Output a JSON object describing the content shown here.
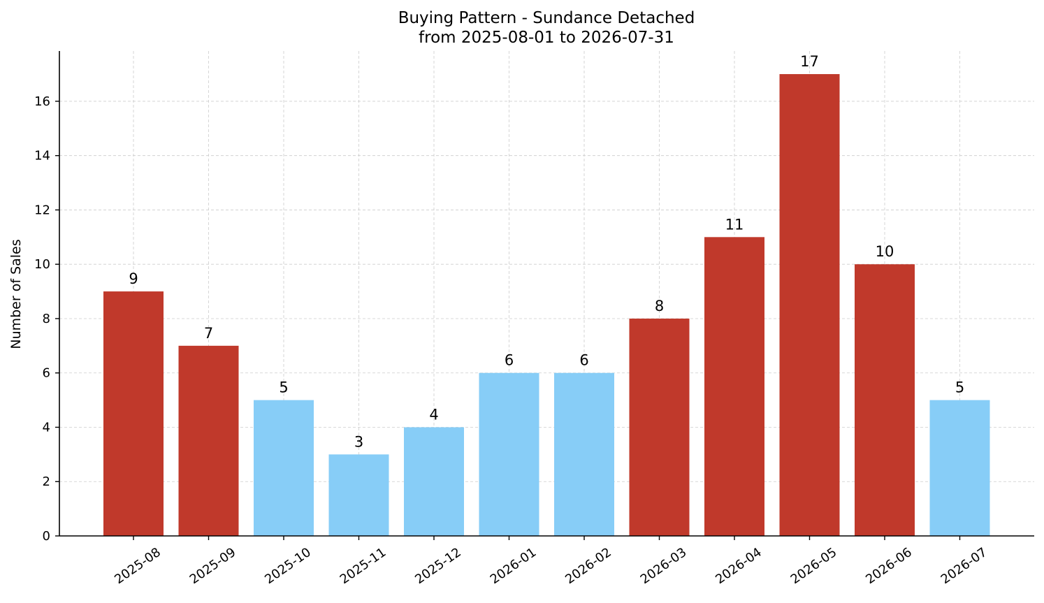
{
  "chart_data": {
    "type": "bar",
    "title_line1": "Buying Pattern - Sundance Detached",
    "title_line2": "from 2025-08-01 to 2026-07-31",
    "ylabel": "Number of Sales",
    "xlabel": "",
    "categories": [
      "2025-08",
      "2025-09",
      "2025-10",
      "2025-11",
      "2025-12",
      "2026-01",
      "2026-02",
      "2026-03",
      "2026-04",
      "2026-05",
      "2026-06",
      "2026-07"
    ],
    "values": [
      9,
      7,
      5,
      3,
      4,
      6,
      6,
      8,
      11,
      17,
      10,
      5
    ],
    "highlight": [
      true,
      true,
      false,
      false,
      false,
      false,
      false,
      true,
      true,
      true,
      true,
      false
    ],
    "colors": {
      "highlight": "#c0392b",
      "normal": "#87cdf7"
    },
    "ylim": [
      0,
      17.85
    ],
    "yticks": [
      0,
      2,
      4,
      6,
      8,
      10,
      12,
      14,
      16
    ],
    "grid": true,
    "legend": "none"
  }
}
